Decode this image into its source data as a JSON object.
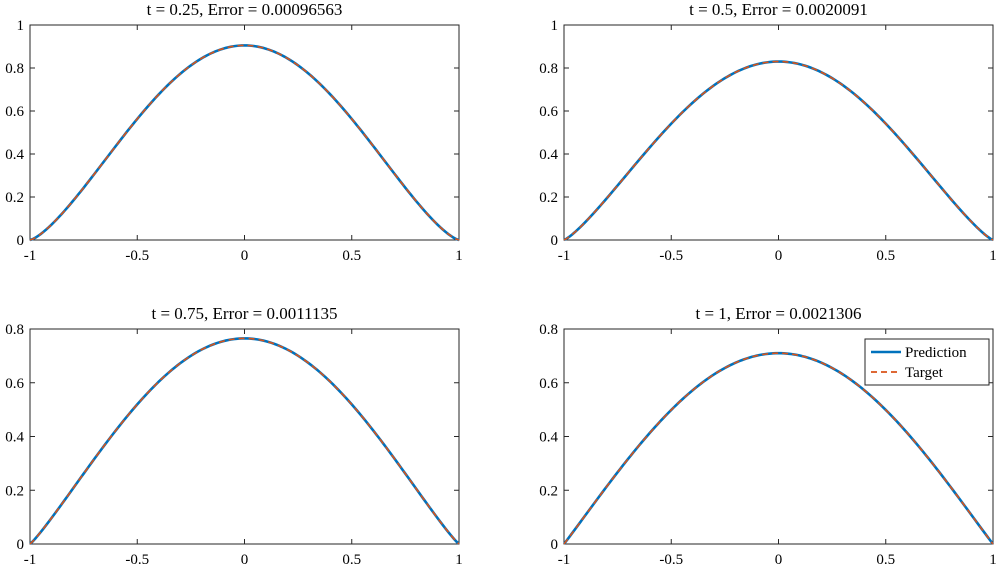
{
  "figure": {
    "background": "#ffffff",
    "axis_color": "#262626",
    "prediction_color": "#0072BD",
    "target_color": "#D95319"
  },
  "chart_data": [
    {
      "type": "line",
      "title": "t = 0.25, Error = 0.00096563",
      "xlim": [
        -1,
        1
      ],
      "ylim": [
        0,
        1
      ],
      "xticks": [
        -1,
        -0.5,
        0,
        0.5,
        1
      ],
      "xtick_labels": [
        "-1",
        "-0.5",
        "0",
        "0.5",
        "1"
      ],
      "yticks": [
        0,
        0.2,
        0.4,
        0.6,
        0.8,
        1
      ],
      "ytick_labels": [
        "0",
        "0.2",
        "0.4",
        "0.6",
        "0.8",
        "1"
      ],
      "peak": 0.905,
      "grid": false,
      "series": [
        {
          "name": "Prediction",
          "style": "solid"
        },
        {
          "name": "Target",
          "style": "dashed"
        }
      ],
      "legend": null
    },
    {
      "type": "line",
      "title": "t = 0.5, Error = 0.0020091",
      "xlim": [
        -1,
        1
      ],
      "ylim": [
        0,
        1
      ],
      "xticks": [
        -1,
        -0.5,
        0,
        0.5,
        1
      ],
      "xtick_labels": [
        "-1",
        "-0.5",
        "0",
        "0.5",
        "1"
      ],
      "yticks": [
        0,
        0.2,
        0.4,
        0.6,
        0.8,
        1
      ],
      "ytick_labels": [
        "0",
        "0.2",
        "0.4",
        "0.6",
        "0.8",
        "1"
      ],
      "peak": 0.83,
      "grid": false,
      "series": [
        {
          "name": "Prediction",
          "style": "solid"
        },
        {
          "name": "Target",
          "style": "dashed"
        }
      ],
      "legend": null
    },
    {
      "type": "line",
      "title": "t = 0.75, Error = 0.0011135",
      "xlim": [
        -1,
        1
      ],
      "ylim": [
        0,
        0.8
      ],
      "xticks": [
        -1,
        -0.5,
        0,
        0.5,
        1
      ],
      "xtick_labels": [
        "-1",
        "-0.5",
        "0",
        "0.5",
        "1"
      ],
      "yticks": [
        0,
        0.2,
        0.4,
        0.6,
        0.8
      ],
      "ytick_labels": [
        "0",
        "0.2",
        "0.4",
        "0.6",
        "0.8"
      ],
      "peak": 0.765,
      "grid": false,
      "series": [
        {
          "name": "Prediction",
          "style": "solid"
        },
        {
          "name": "Target",
          "style": "dashed"
        }
      ],
      "legend": null
    },
    {
      "type": "line",
      "title": "t = 1, Error = 0.0021306",
      "xlim": [
        -1,
        1
      ],
      "ylim": [
        0,
        0.8
      ],
      "xticks": [
        -1,
        -0.5,
        0,
        0.5,
        1
      ],
      "xtick_labels": [
        "-1",
        "-0.5",
        "0",
        "0.5",
        "1"
      ],
      "yticks": [
        0,
        0.2,
        0.4,
        0.6,
        0.8
      ],
      "ytick_labels": [
        "0",
        "0.2",
        "0.4",
        "0.6",
        "0.8"
      ],
      "peak": 0.71,
      "grid": false,
      "series": [
        {
          "name": "Prediction",
          "style": "solid"
        },
        {
          "name": "Target",
          "style": "dashed"
        }
      ],
      "legend": "top-right"
    }
  ]
}
